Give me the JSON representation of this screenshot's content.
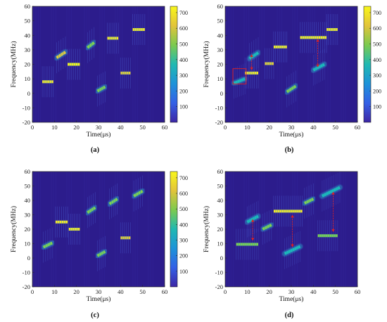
{
  "colormap": {
    "background": "#2c1c8c",
    "stops": [
      "#3b20a8",
      "#2d57e0",
      "#1591d8",
      "#1cbdb6",
      "#7fd14e",
      "#e1c93a",
      "#f9f71a"
    ]
  },
  "colorbar": {
    "min": 0,
    "max": 740,
    "ticks": [
      100,
      200,
      300,
      400,
      500,
      600,
      700
    ]
  },
  "chart_data": [
    {
      "panel_label": "(a)",
      "type": "heatmap",
      "xlabel": "Time(μs)",
      "ylabel": "Frequency(MHz)",
      "xlim": [
        0,
        60
      ],
      "ylim": [
        -20,
        60
      ],
      "xticks": [
        0,
        10,
        20,
        30,
        40,
        50,
        60
      ],
      "yticks": [
        -20,
        -10,
        0,
        10,
        20,
        30,
        40,
        50,
        60
      ],
      "has_colorbar": true,
      "segments": [
        {
          "t0": 4.5,
          "t1": 9.5,
          "f0": 8,
          "f1": 8,
          "intensity": 0.75
        },
        {
          "t0": 11,
          "t1": 15,
          "f0": 24.5,
          "f1": 28.5,
          "intensity": 0.6
        },
        {
          "t0": 16,
          "t1": 21.5,
          "f0": 20,
          "f1": 20,
          "intensity": 0.95
        },
        {
          "t0": 25,
          "t1": 28,
          "f0": 31.5,
          "f1": 35,
          "intensity": 0.55
        },
        {
          "t0": 29.5,
          "t1": 33,
          "f0": 1.5,
          "f1": 4.5,
          "intensity": 0.55
        },
        {
          "t0": 34,
          "t1": 39,
          "f0": 38,
          "f1": 38,
          "intensity": 0.75
        },
        {
          "t0": 40,
          "t1": 44.5,
          "f0": 14,
          "f1": 14,
          "intensity": 0.65
        },
        {
          "t0": 45.5,
          "t1": 51,
          "f0": 44,
          "f1": 44,
          "intensity": 0.85
        }
      ],
      "annotations": []
    },
    {
      "panel_label": "(b)",
      "type": "heatmap",
      "xlabel": "Time(μs)",
      "ylabel": "Frequency(MHz)",
      "xlim": [
        0,
        60
      ],
      "ylim": [
        -20,
        60
      ],
      "xticks": [
        0,
        10,
        20,
        30,
        40,
        50,
        60
      ],
      "yticks": [
        -20,
        -10,
        0,
        10,
        20,
        30,
        40,
        50,
        60
      ],
      "has_colorbar": true,
      "segments": [
        {
          "t0": 4,
          "t1": 9,
          "f0": 7,
          "f1": 10,
          "intensity": 0.25
        },
        {
          "t0": 9,
          "t1": 15,
          "f0": 14,
          "f1": 14,
          "intensity": 0.8
        },
        {
          "t0": 11,
          "t1": 15,
          "f0": 24,
          "f1": 28,
          "intensity": 0.35
        },
        {
          "t0": 18,
          "t1": 22,
          "f0": 20.5,
          "f1": 20.5,
          "intensity": 0.7
        },
        {
          "t0": 22,
          "t1": 28,
          "f0": 32,
          "f1": 32,
          "intensity": 0.9
        },
        {
          "t0": 28,
          "t1": 32,
          "f0": 1,
          "f1": 5,
          "intensity": 0.45
        },
        {
          "t0": 34,
          "t1": 46,
          "f0": 38.5,
          "f1": 38.5,
          "intensity": 0.85
        },
        {
          "t0": 40,
          "t1": 45,
          "f0": 16,
          "f1": 20,
          "intensity": 0.3
        },
        {
          "t0": 46,
          "t1": 51,
          "f0": 44,
          "f1": 44,
          "intensity": 0.8
        }
      ],
      "annotations": [
        {
          "kind": "box",
          "x0": 3.5,
          "x1": 9.5,
          "y0": 6.5,
          "y1": 17
        },
        {
          "kind": "double-arrow",
          "x": 12,
          "y0": 16,
          "y1": 27
        },
        {
          "kind": "double-arrow",
          "x": 42,
          "y0": 18,
          "y1": 37.5
        }
      ]
    },
    {
      "panel_label": "(c)",
      "type": "heatmap",
      "xlabel": "Time(μs)",
      "ylabel": "Frequency(MHz)",
      "xlim": [
        0,
        60
      ],
      "ylim": [
        -20,
        60
      ],
      "xticks": [
        0,
        10,
        20,
        30,
        40,
        50,
        60
      ],
      "yticks": [
        -20,
        -10,
        0,
        10,
        20,
        30,
        40,
        50,
        60
      ],
      "has_colorbar": true,
      "segments": [
        {
          "t0": 5,
          "t1": 9,
          "f0": 7.5,
          "f1": 10.5,
          "intensity": 0.55
        },
        {
          "t0": 10.5,
          "t1": 16,
          "f0": 25,
          "f1": 25,
          "intensity": 0.9
        },
        {
          "t0": 16.5,
          "t1": 21.5,
          "f0": 20,
          "f1": 20,
          "intensity": 0.75
        },
        {
          "t0": 25,
          "t1": 28.5,
          "f0": 31.5,
          "f1": 35,
          "intensity": 0.55
        },
        {
          "t0": 29.5,
          "t1": 33,
          "f0": 1.5,
          "f1": 4.5,
          "intensity": 0.55
        },
        {
          "t0": 35,
          "t1": 38.5,
          "f0": 37.5,
          "f1": 41,
          "intensity": 0.55
        },
        {
          "t0": 40,
          "t1": 44.5,
          "f0": 14,
          "f1": 14,
          "intensity": 0.6
        },
        {
          "t0": 46,
          "t1": 50,
          "f0": 43,
          "f1": 46.5,
          "intensity": 0.55
        }
      ],
      "annotations": []
    },
    {
      "panel_label": "(d)",
      "type": "heatmap",
      "xlabel": "Time(μs)",
      "ylabel": "Frequency(MHz)",
      "xlim": [
        0,
        60
      ],
      "ylim": [
        -20,
        60
      ],
      "xticks": [
        0,
        10,
        20,
        30,
        40,
        50,
        60
      ],
      "yticks": [
        -20,
        -10,
        0,
        10,
        20,
        30,
        40,
        50,
        60
      ],
      "has_colorbar": false,
      "segments": [
        {
          "t0": 5,
          "t1": 15,
          "f0": 9.5,
          "f1": 9.5,
          "intensity": 0.55
        },
        {
          "t0": 10,
          "t1": 15,
          "f0": 25,
          "f1": 29,
          "intensity": 0.35
        },
        {
          "t0": 17,
          "t1": 21,
          "f0": 20,
          "f1": 23,
          "intensity": 0.55
        },
        {
          "t0": 22,
          "t1": 35,
          "f0": 32.5,
          "f1": 32.5,
          "intensity": 0.9
        },
        {
          "t0": 27,
          "t1": 34,
          "f0": 3,
          "f1": 8,
          "intensity": 0.3
        },
        {
          "t0": 36,
          "t1": 40,
          "f0": 38,
          "f1": 41,
          "intensity": 0.55
        },
        {
          "t0": 42,
          "t1": 51,
          "f0": 15.5,
          "f1": 15.5,
          "intensity": 0.5
        },
        {
          "t0": 44,
          "t1": 52,
          "f0": 43,
          "f1": 49,
          "intensity": 0.3
        }
      ],
      "annotations": [
        {
          "kind": "double-arrow",
          "x": 12.5,
          "y0": 12,
          "y1": 27
        },
        {
          "kind": "double-arrow",
          "x": 30.5,
          "y0": 7.5,
          "y1": 30
        },
        {
          "kind": "double-arrow",
          "x": 49,
          "y0": 18,
          "y1": 46
        }
      ]
    }
  ]
}
